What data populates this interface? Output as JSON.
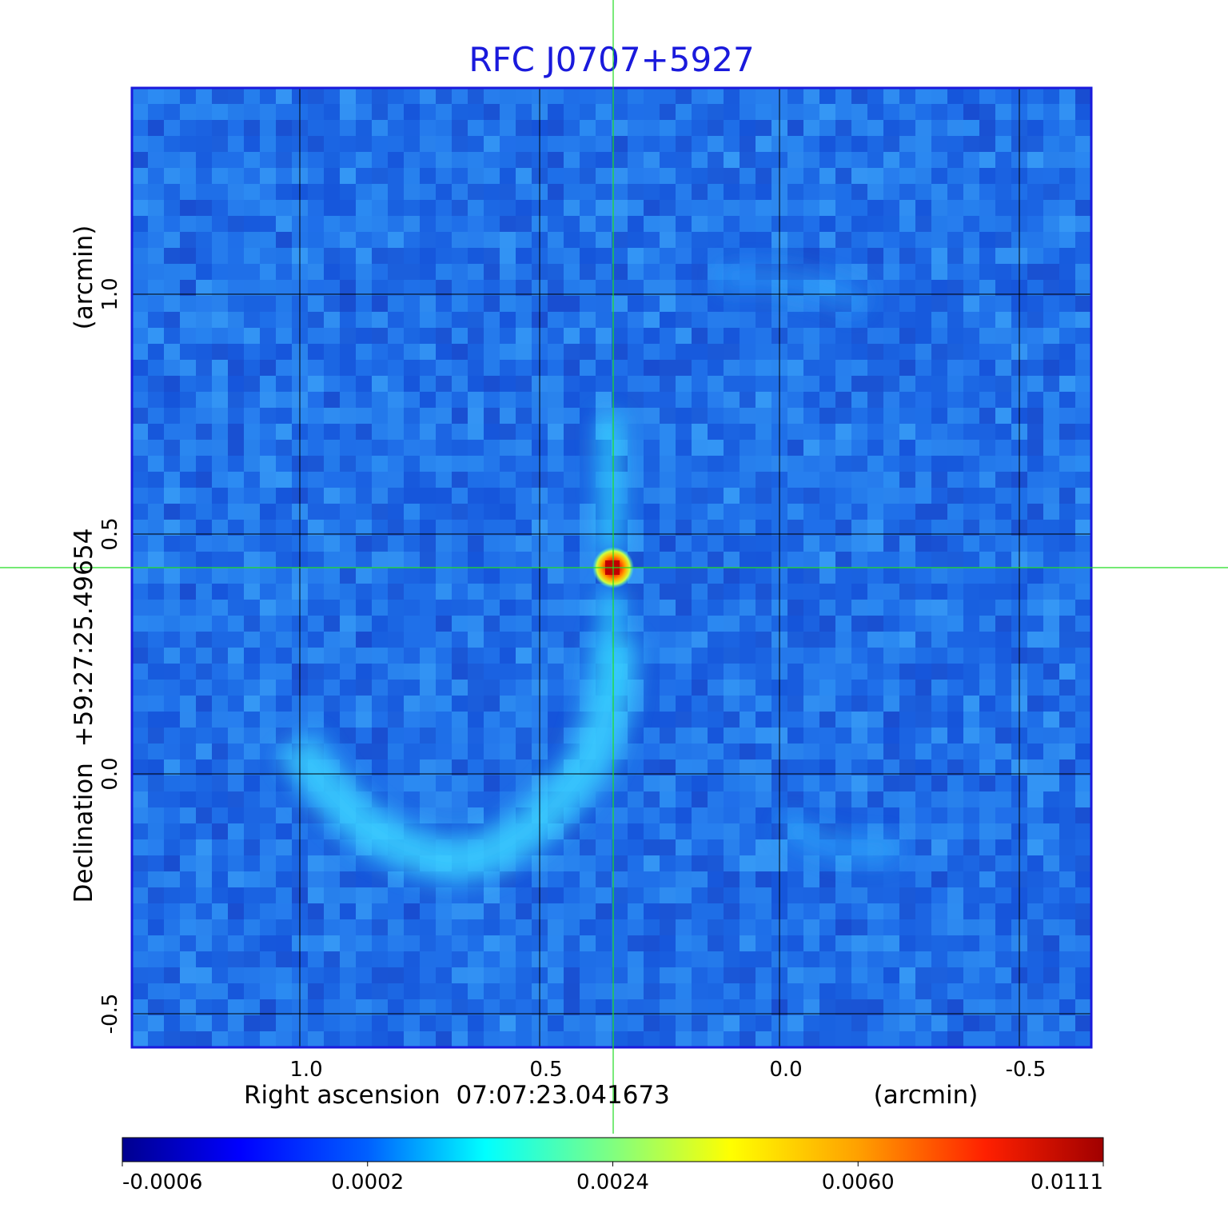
{
  "chart_data": {
    "type": "heatmap",
    "title": "RFC J0707+5927",
    "xlabel": "Right ascension  07:07:23.041673",
    "xlabel_unit": "(arcmin)",
    "ylabel": "Declination  +59:27:25.49654",
    "ylabel_unit": "(arcmin)",
    "x_ticks": [
      "1.0",
      "0.5",
      "0.0",
      "-0.5"
    ],
    "x_tick_values": [
      1.0,
      0.5,
      0.0,
      -0.5
    ],
    "y_ticks": [
      "1.0",
      "0.5",
      "0.0",
      "-0.5"
    ],
    "y_tick_values": [
      1.0,
      0.5,
      0.0,
      -0.5
    ],
    "xlim": [
      1.35,
      -0.65
    ],
    "ylim": [
      -0.57,
      1.43
    ],
    "x_reversed": true,
    "grid": true,
    "crosshair": {
      "x": 0.35,
      "y": 0.43,
      "color": "#22dd22"
    },
    "source_peak": {
      "x": 0.35,
      "y": 0.43,
      "value": 0.0111
    },
    "colorbar": {
      "ticks": [
        "-0.0006",
        "0.0002",
        "0.0024",
        "0.0060",
        "0.0111"
      ],
      "colormap": "jet",
      "min": -0.0006,
      "max": 0.0111
    },
    "colors": {
      "background": "#1e6ee6",
      "frame": "#1a1adc",
      "grid": "#000000"
    }
  }
}
